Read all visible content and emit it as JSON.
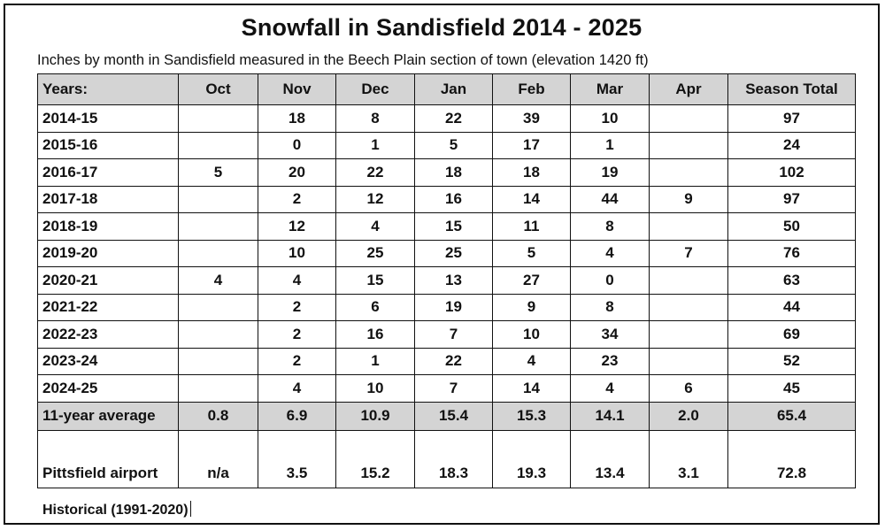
{
  "chart_data": {
    "type": "table",
    "title": "Snowfall in Sandisfield 2014 - 2025",
    "subtitle": "Inches by month in Sandisfield measured in the Beech Plain section of town (elevation 1420 ft)",
    "columns": [
      "Years:",
      "Oct",
      "Nov",
      "Dec",
      "Jan",
      "Feb",
      "Mar",
      "Apr",
      "Season Total"
    ],
    "rows": [
      [
        "2014-15",
        "",
        "18",
        "8",
        "22",
        "39",
        "10",
        "",
        "97"
      ],
      [
        "2015-16",
        "",
        "0",
        "1",
        "5",
        "17",
        "1",
        "",
        "24"
      ],
      [
        "2016-17",
        "5",
        "20",
        "22",
        "18",
        "18",
        "19",
        "",
        "102"
      ],
      [
        "2017-18",
        "",
        "2",
        "12",
        "16",
        "14",
        "44",
        "9",
        "97"
      ],
      [
        "2018-19",
        "",
        "12",
        "4",
        "15",
        "11",
        "8",
        "",
        "50"
      ],
      [
        "2019-20",
        "",
        "10",
        "25",
        "25",
        "5",
        "4",
        "7",
        "76"
      ],
      [
        "2020-21",
        "4",
        "4",
        "15",
        "13",
        "27",
        "0",
        "",
        "63"
      ],
      [
        "2021-22",
        "",
        "2",
        "6",
        "19",
        "9",
        "8",
        "",
        "44"
      ],
      [
        "2022-23",
        "",
        "2",
        "16",
        "7",
        "10",
        "34",
        "",
        "69"
      ],
      [
        "2023-24",
        "",
        "2",
        "1",
        "22",
        "4",
        "23",
        "",
        "52"
      ],
      [
        "2024-25",
        "",
        "4",
        "10",
        "7",
        "14",
        "4",
        "6",
        "45"
      ]
    ],
    "average_row": [
      "11-year average",
      "0.8",
      "6.9",
      "10.9",
      "15.4",
      "15.3",
      "14.1",
      "2.0",
      "65.4"
    ],
    "historical_row": [
      "Pittsfield airport",
      "n/a",
      "3.5",
      "15.2",
      "18.3",
      "19.3",
      "13.4",
      "3.1",
      "72.8"
    ],
    "footnote": "Historical (1991-2020)"
  },
  "colors": {
    "header_bg": "#d4d4d4",
    "average_bg": "#d4d4d4",
    "border": "#111111"
  }
}
